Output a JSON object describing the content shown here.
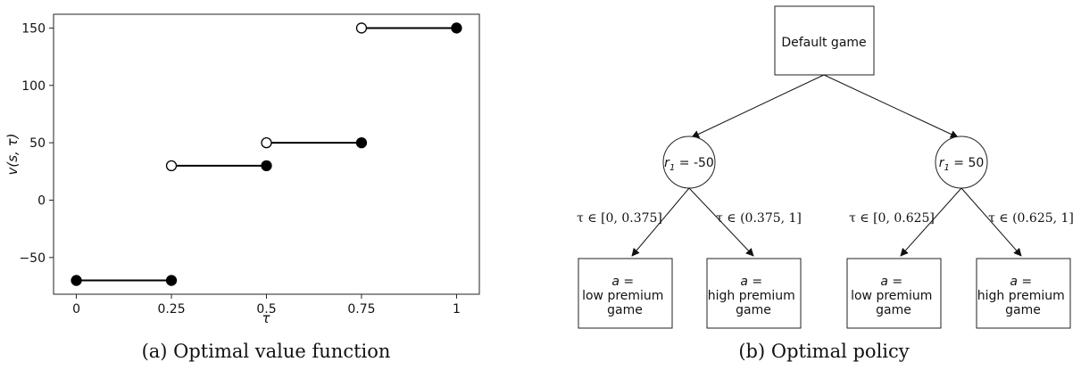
{
  "chart_data": {
    "type": "line",
    "xlabel": "τ",
    "ylabel": "v(s, τ)",
    "xlim": [
      -0.06,
      1.06
    ],
    "ylim": [
      -82,
      162
    ],
    "x_ticks": [
      0,
      0.25,
      0.5,
      0.75,
      1
    ],
    "x_tick_labels": [
      "0",
      "0.25",
      "0.5",
      "0.75",
      "1"
    ],
    "y_ticks": [
      -50,
      0,
      50,
      100,
      150
    ],
    "y_tick_labels": [
      "−50",
      "0",
      "50",
      "100",
      "150"
    ],
    "grid": false,
    "segments": [
      {
        "x_start": 0,
        "x_end": 0.25,
        "y": -70,
        "start_closed": true,
        "end_closed": true
      },
      {
        "x_start": 0.25,
        "x_end": 0.5,
        "y": 30,
        "start_closed": false,
        "end_closed": true
      },
      {
        "x_start": 0.5,
        "x_end": 0.75,
        "y": 50,
        "start_closed": false,
        "end_closed": true
      },
      {
        "x_start": 0.75,
        "x_end": 1,
        "y": 150,
        "start_closed": false,
        "end_closed": true
      }
    ]
  },
  "captions": {
    "a": "(a) Optimal value function",
    "b": "(b) Optimal policy"
  },
  "tree": {
    "root": "Default game",
    "nodes": [
      {
        "label": "r",
        "subscript": "1",
        "eq": " = -50"
      },
      {
        "label": "r",
        "subscript": "1",
        "eq": " = 50"
      }
    ],
    "branches": [
      "τ  ∈ [0, 0.375]",
      "τ  ∈ (0.375, 1]",
      "τ  ∈ [0, 0.625]",
      "τ  ∈ (0.625, 1]"
    ],
    "leaves": [
      {
        "lines": [
          "a =",
          "low premium",
          "game"
        ]
      },
      {
        "lines": [
          "a =",
          "high premium",
          "game"
        ]
      },
      {
        "lines": [
          "a =",
          "low premium",
          "game"
        ]
      },
      {
        "lines": [
          "a =",
          "high premium",
          "game"
        ]
      }
    ]
  }
}
